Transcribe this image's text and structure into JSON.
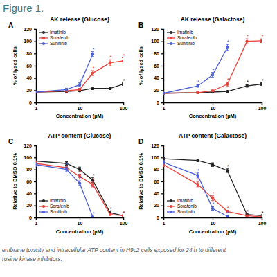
{
  "figure_title": "Figure 1.",
  "caption": [
    "embrane toxicity and intracellular ATP content in H9c2 cells exposed for 24 h to different",
    "rosine kinase inhibitors."
  ],
  "chart_data": [
    {
      "type": "line",
      "label": "A",
      "title": "AK release (Glucose)",
      "x_label": "Concentration (µM)",
      "y_label": "% of lysed cells",
      "log": "x",
      "xlim": [
        1,
        100
      ],
      "xticks": [
        1,
        10,
        100
      ],
      "ylim": [
        0,
        120
      ],
      "yticks": [
        0,
        20,
        40,
        60,
        80,
        100,
        120
      ],
      "legend": "upper left",
      "marker": "circle",
      "series": [
        {
          "name": "Imatinib",
          "color": "#222222",
          "x": [
            1,
            5,
            10,
            20,
            50,
            100
          ],
          "values": [
            17,
            18,
            19,
            23,
            23,
            30
          ],
          "errors": [
            1,
            1,
            1,
            2,
            2,
            2
          ],
          "annotations": [
            null,
            null,
            null,
            null,
            null,
            "*"
          ]
        },
        {
          "name": "Sorafenib",
          "color": "#e8413a",
          "x": [
            1,
            5,
            10,
            20,
            50,
            100
          ],
          "values": [
            17,
            19,
            21,
            48,
            65,
            68
          ],
          "errors": [
            1,
            1,
            2,
            4,
            5,
            5
          ],
          "annotations": [
            null,
            null,
            null,
            "*",
            "*",
            "*"
          ]
        },
        {
          "name": "Sunitinib",
          "color": "#4a5fd8",
          "x": [
            1,
            5,
            10,
            20
          ],
          "values": [
            17,
            21,
            29,
            79
          ],
          "errors": [
            1,
            2,
            3,
            4
          ],
          "annotations": [
            null,
            null,
            "*",
            "*"
          ]
        }
      ]
    },
    {
      "type": "line",
      "label": "B",
      "title": "AK release (Galactose)",
      "x_label": "Concentration (µM)",
      "y_label": "% of lysed cells",
      "log": "x",
      "xlim": [
        1,
        100
      ],
      "xticks": [
        1,
        10,
        100
      ],
      "ylim": [
        0,
        120
      ],
      "yticks": [
        0,
        20,
        40,
        60,
        80,
        100,
        120
      ],
      "legend": "upper left",
      "marker": "circle",
      "series": [
        {
          "name": "Imatinib",
          "color": "#222222",
          "x": [
            1,
            5,
            10,
            20,
            50,
            100
          ],
          "values": [
            15,
            16,
            17,
            18,
            27,
            30
          ],
          "errors": [
            1,
            1,
            1,
            1,
            2,
            2
          ],
          "annotations": [
            null,
            null,
            null,
            null,
            "*",
            "*"
          ]
        },
        {
          "name": "Sorafenib",
          "color": "#e8413a",
          "x": [
            1,
            5,
            10,
            20,
            50,
            100
          ],
          "values": [
            15,
            16,
            19,
            30,
            100,
            101
          ],
          "errors": [
            1,
            1,
            1,
            3,
            4,
            3
          ],
          "annotations": [
            null,
            null,
            null,
            "*",
            "*",
            "*"
          ]
        },
        {
          "name": "Sunitinib",
          "color": "#4a5fd8",
          "x": [
            1,
            5,
            10,
            20
          ],
          "values": [
            15,
            27,
            45,
            90
          ],
          "errors": [
            1,
            2,
            4,
            5
          ],
          "annotations": [
            null,
            "*",
            "*",
            "*"
          ]
        }
      ]
    },
    {
      "type": "line",
      "label": "C",
      "title": "ATP content (Glucose)",
      "x_label": "Concentration (µM)",
      "y_label": "Relative to DMSO 0.1%",
      "log": "x",
      "xlim": [
        1,
        100
      ],
      "xticks": [
        1,
        10,
        100
      ],
      "ylim": [
        0,
        120
      ],
      "yticks": [
        0,
        20,
        40,
        60,
        80,
        100,
        120
      ],
      "legend": "lower left",
      "marker": "circle",
      "series": [
        {
          "name": "Imatinib",
          "color": "#222222",
          "x": [
            1,
            5,
            10,
            20,
            50,
            100
          ],
          "values": [
            94,
            90,
            80,
            62,
            8,
            3
          ],
          "errors": [
            3,
            3,
            4,
            4,
            2,
            1
          ],
          "annotations": [
            null,
            null,
            null,
            "*",
            "*",
            "*"
          ]
        },
        {
          "name": "Sorafenib",
          "color": "#e8413a",
          "x": [
            1,
            5,
            10,
            20,
            50,
            100
          ],
          "values": [
            90,
            83,
            68,
            55,
            5,
            3
          ],
          "errors": [
            3,
            3,
            4,
            4,
            1,
            1
          ],
          "annotations": [
            null,
            null,
            "*",
            "*",
            "*",
            "*"
          ]
        },
        {
          "name": "Sunitinib",
          "color": "#4a5fd8",
          "x": [
            1,
            5,
            10,
            20
          ],
          "values": [
            88,
            80,
            57,
            1
          ],
          "errors": [
            3,
            4,
            4,
            1
          ],
          "annotations": [
            null,
            "*",
            "*",
            "*"
          ]
        }
      ]
    },
    {
      "type": "line",
      "label": "D",
      "title": "ATP content (Galactose)",
      "x_label": "Concentration (µM)",
      "y_label": "Relative to DMSO 0.1%",
      "log": "x",
      "xlim": [
        1,
        100
      ],
      "xticks": [
        1,
        10,
        100
      ],
      "ylim": [
        0,
        120
      ],
      "yticks": [
        0,
        20,
        40,
        60,
        80,
        100,
        120
      ],
      "legend": "lower left",
      "marker": "circle",
      "series": [
        {
          "name": "Imatinib",
          "color": "#222222",
          "x": [
            1,
            5,
            10,
            20,
            50,
            100
          ],
          "values": [
            98,
            95,
            88,
            78,
            5,
            3
          ],
          "errors": [
            2,
            2,
            3,
            3,
            1,
            1
          ],
          "annotations": [
            null,
            null,
            null,
            "*",
            "*",
            "*"
          ]
        },
        {
          "name": "Sorafenib",
          "color": "#e8413a",
          "x": [
            1,
            5,
            10,
            20,
            50,
            100
          ],
          "values": [
            88,
            55,
            32,
            10,
            3,
            1
          ],
          "errors": [
            3,
            4,
            4,
            2,
            1,
            1
          ],
          "annotations": [
            null,
            "*",
            "*",
            "*",
            null,
            null
          ]
        },
        {
          "name": "Sunitinib",
          "color": "#4a5fd8",
          "x": [
            1,
            5,
            10,
            20
          ],
          "values": [
            92,
            70,
            15,
            2
          ],
          "errors": [
            3,
            4,
            3,
            1
          ],
          "annotations": [
            null,
            "*",
            "*",
            "*"
          ]
        }
      ]
    }
  ]
}
